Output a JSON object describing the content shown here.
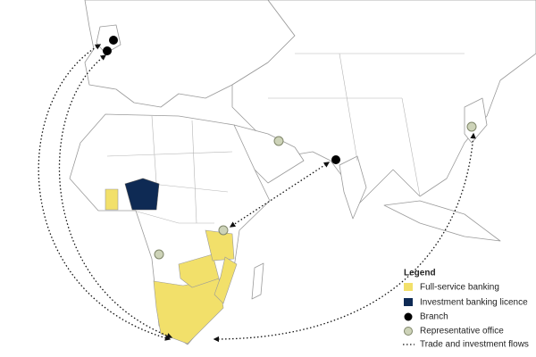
{
  "legend": {
    "title": "Legend",
    "items": [
      "Full-service banking",
      "Investment banking licence",
      "Branch",
      "Representative office",
      "Trade and investment flows"
    ]
  }
}
